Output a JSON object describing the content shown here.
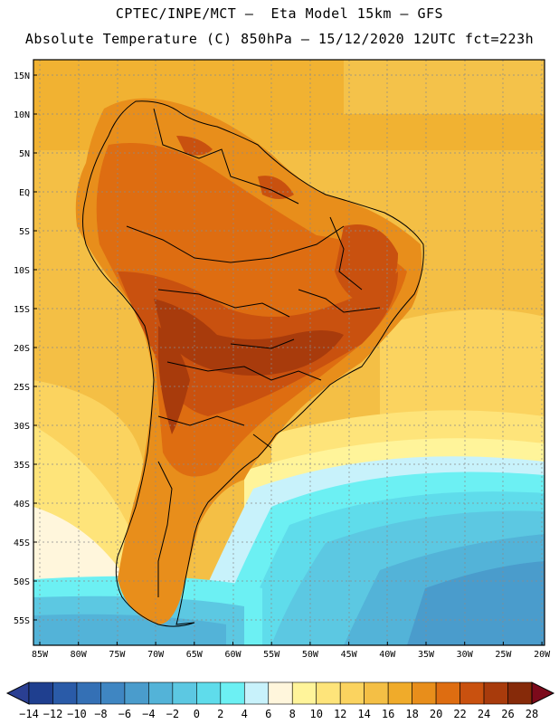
{
  "title_line1": "CPTEC/INPE/MCT —  Eta Model 15km — GFS",
  "title_line2": "Absolute Temperature (C) 850hPa — 15/12/2020 12UTC fct=223h",
  "lat_labels": [
    "15N",
    "10N",
    "5N",
    "EQ",
    "5S",
    "10S",
    "15S",
    "20S",
    "25S",
    "30S",
    "35S",
    "40S",
    "45S",
    "50S",
    "55S"
  ],
  "lon_labels": [
    "85W",
    "80W",
    "75W",
    "70W",
    "65W",
    "60W",
    "55W",
    "50W",
    "45W",
    "40W",
    "35W",
    "30W",
    "25W",
    "20W"
  ],
  "colorbar": {
    "labels": [
      "-14",
      "-12",
      "-10",
      "-8",
      "-6",
      "-4",
      "-2",
      "0",
      "2",
      "4",
      "6",
      "8",
      "10",
      "12",
      "14",
      "16",
      "18",
      "20",
      "22",
      "24",
      "26",
      "28"
    ],
    "colors": [
      "#1f3f8f",
      "#2a5ba8",
      "#3470b5",
      "#3f86c2",
      "#4a9ccc",
      "#53b3d8",
      "#5cc8e2",
      "#5fdceb",
      "#6cf0f3",
      "#c8f2fb",
      "#fff6dc",
      "#fff49a",
      "#fee47a",
      "#fbd35f",
      "#f4bf45",
      "#f0ab2a",
      "#e88e1b",
      "#de6d11",
      "#c9510f",
      "#a83b0c",
      "#862a09"
    ],
    "under_color": "#2a3f92",
    "over_color": "#7c0a1b"
  }
}
